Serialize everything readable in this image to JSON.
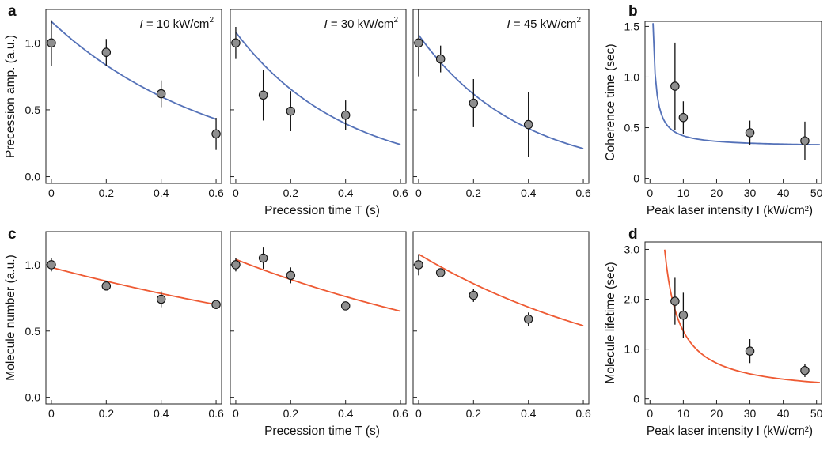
{
  "panel_letters": [
    "a",
    "b",
    "c",
    "d"
  ],
  "chart_data": [
    {
      "id": "a1",
      "type": "scatter",
      "panel": "a",
      "annotation": {
        "var": "I",
        "text": " = 10 kW/cm",
        "sup": "2"
      },
      "ylabel": "Precession amp. (a.u.)",
      "xlabel": "",
      "xlim": [
        -0.02,
        0.62
      ],
      "ylim": [
        -0.05,
        1.25
      ],
      "xticks": [
        "0",
        "0.2",
        "0.4",
        "0.6"
      ],
      "yticks": [
        "0.0",
        "0.5",
        "1.0"
      ],
      "line_color": "#5471b8",
      "points": [
        {
          "x": 0,
          "y": 1.0,
          "err": 0.17
        },
        {
          "x": 0.2,
          "y": 0.93,
          "err": 0.1
        },
        {
          "x": 0.4,
          "y": 0.62,
          "err": 0.1
        },
        {
          "x": 0.6,
          "y": 0.32,
          "err": 0.12
        }
      ],
      "fit": {
        "x0": 0,
        "x1": 0.6,
        "y0": 1.16,
        "y1": 0.43,
        "kind": "exp"
      }
    },
    {
      "id": "a2",
      "type": "scatter",
      "panel": "a",
      "annotation": {
        "var": "I",
        "text": " = 30 kW/cm",
        "sup": "2"
      },
      "ylabel": "",
      "xlabel": "Precession time T (s)",
      "xlim": [
        -0.02,
        0.62
      ],
      "ylim": [
        -0.05,
        1.25
      ],
      "xticks": [
        "0",
        "0.2",
        "0.4",
        "0.6"
      ],
      "yticks": [],
      "line_color": "#5471b8",
      "points": [
        {
          "x": 0,
          "y": 1.0,
          "err": 0.12
        },
        {
          "x": 0.1,
          "y": 0.61,
          "err": 0.19
        },
        {
          "x": 0.2,
          "y": 0.49,
          "err": 0.15
        },
        {
          "x": 0.4,
          "y": 0.46,
          "err": 0.11
        }
      ],
      "fit": {
        "x0": 0,
        "x1": 0.6,
        "y0": 1.08,
        "y1": 0.24,
        "kind": "exp"
      }
    },
    {
      "id": "a3",
      "type": "scatter",
      "panel": "a",
      "annotation": {
        "var": "I",
        "text": " = 45 kW/cm",
        "sup": "2"
      },
      "ylabel": "",
      "xlabel": "",
      "xlim": [
        -0.02,
        0.62
      ],
      "ylim": [
        -0.05,
        1.25
      ],
      "xticks": [
        "0",
        "0.2",
        "0.4",
        "0.6"
      ],
      "yticks": [],
      "line_color": "#5471b8",
      "points": [
        {
          "x": 0,
          "y": 1.0,
          "err": 0.25
        },
        {
          "x": 0.08,
          "y": 0.88,
          "err": 0.1
        },
        {
          "x": 0.2,
          "y": 0.55,
          "err": 0.18
        },
        {
          "x": 0.4,
          "y": 0.39,
          "err": 0.24
        }
      ],
      "fit": {
        "x0": 0,
        "x1": 0.6,
        "y0": 1.06,
        "y1": 0.21,
        "kind": "exp"
      }
    },
    {
      "id": "b",
      "type": "scatter",
      "panel": "b",
      "ylabel": "Coherence time (sec)",
      "xlabel": "Peak laser intensity I (kW/cm²)",
      "xlim": [
        -1.5,
        51.5
      ],
      "ylim": [
        -0.05,
        1.55
      ],
      "xticks": [
        "0",
        "10",
        "20",
        "30",
        "40",
        "50"
      ],
      "yticks": [
        "0",
        "0.5",
        "1.0",
        "1.5"
      ],
      "line_color": "#5471b8",
      "points": [
        {
          "x": 7.5,
          "y": 0.91,
          "err": 0.43
        },
        {
          "x": 10,
          "y": 0.6,
          "err": 0.16
        },
        {
          "x": 30,
          "y": 0.45,
          "err": 0.12
        },
        {
          "x": 46.5,
          "y": 0.37,
          "err": 0.19
        }
      ],
      "fit": {
        "x0": 0.9,
        "x1": 51,
        "a": 0.31,
        "b": 1.1,
        "kind": "recip"
      }
    },
    {
      "id": "c1",
      "type": "scatter",
      "panel": "c",
      "ylabel": "Molecule number (a.u.)",
      "xlabel": "",
      "xlim": [
        -0.02,
        0.62
      ],
      "ylim": [
        -0.05,
        1.25
      ],
      "xticks": [
        "0",
        "0.2",
        "0.4",
        "0.6"
      ],
      "yticks": [
        "0.0",
        "0.5",
        "1.0"
      ],
      "line_color": "#ee5a33",
      "points": [
        {
          "x": 0,
          "y": 1.0,
          "err": 0.05
        },
        {
          "x": 0.2,
          "y": 0.84,
          "err": 0.02
        },
        {
          "x": 0.4,
          "y": 0.74,
          "err": 0.06
        },
        {
          "x": 0.6,
          "y": 0.7,
          "err": 0.02
        }
      ],
      "fit": {
        "x0": 0,
        "x1": 0.6,
        "y0": 0.98,
        "y1": 0.7,
        "kind": "exp"
      }
    },
    {
      "id": "c2",
      "type": "scatter",
      "panel": "c",
      "ylabel": "",
      "xlabel": "Precession time T (s)",
      "xlim": [
        -0.02,
        0.62
      ],
      "ylim": [
        -0.05,
        1.25
      ],
      "xticks": [
        "0",
        "0.2",
        "0.4",
        "0.6"
      ],
      "yticks": [],
      "line_color": "#ee5a33",
      "points": [
        {
          "x": 0,
          "y": 1.0,
          "err": 0.05
        },
        {
          "x": 0.1,
          "y": 1.05,
          "err": 0.08
        },
        {
          "x": 0.2,
          "y": 0.92,
          "err": 0.06
        },
        {
          "x": 0.4,
          "y": 0.69,
          "err": 0.03
        }
      ],
      "fit": {
        "x0": 0,
        "x1": 0.6,
        "y0": 1.04,
        "y1": 0.65,
        "kind": "exp"
      }
    },
    {
      "id": "c3",
      "type": "scatter",
      "panel": "c",
      "ylabel": "",
      "xlabel": "",
      "xlim": [
        -0.02,
        0.62
      ],
      "ylim": [
        -0.05,
        1.25
      ],
      "xticks": [
        "0",
        "0.2",
        "0.4",
        "0.6"
      ],
      "yticks": [],
      "line_color": "#ee5a33",
      "points": [
        {
          "x": 0,
          "y": 1.0,
          "err": 0.08
        },
        {
          "x": 0.08,
          "y": 0.94,
          "err": 0.03
        },
        {
          "x": 0.2,
          "y": 0.77,
          "err": 0.05
        },
        {
          "x": 0.4,
          "y": 0.59,
          "err": 0.05
        }
      ],
      "fit": {
        "x0": 0,
        "x1": 0.6,
        "y0": 1.08,
        "y1": 0.54,
        "kind": "exp"
      }
    },
    {
      "id": "d",
      "type": "scatter",
      "panel": "d",
      "ylabel": "Molecule lifetime (sec)",
      "xlabel": "Peak laser intensity I (kW/cm²)",
      "xlim": [
        -1.5,
        51.5
      ],
      "ylim": [
        -0.1,
        3.15
      ],
      "xticks": [
        "0",
        "10",
        "20",
        "30",
        "40",
        "50"
      ],
      "yticks": [
        "0",
        "1.0",
        "2.0",
        "3.0"
      ],
      "line_color": "#ee5a33",
      "points": [
        {
          "x": 7.5,
          "y": 1.96,
          "err": 0.47
        },
        {
          "x": 10,
          "y": 1.68,
          "err": 0.45
        },
        {
          "x": 30,
          "y": 0.96,
          "err": 0.24
        },
        {
          "x": 46.5,
          "y": 0.57,
          "err": 0.13
        }
      ],
      "fit": {
        "x0": 4.4,
        "x1": 51,
        "a": 0.075,
        "b": 12.85,
        "kind": "recip"
      }
    }
  ]
}
